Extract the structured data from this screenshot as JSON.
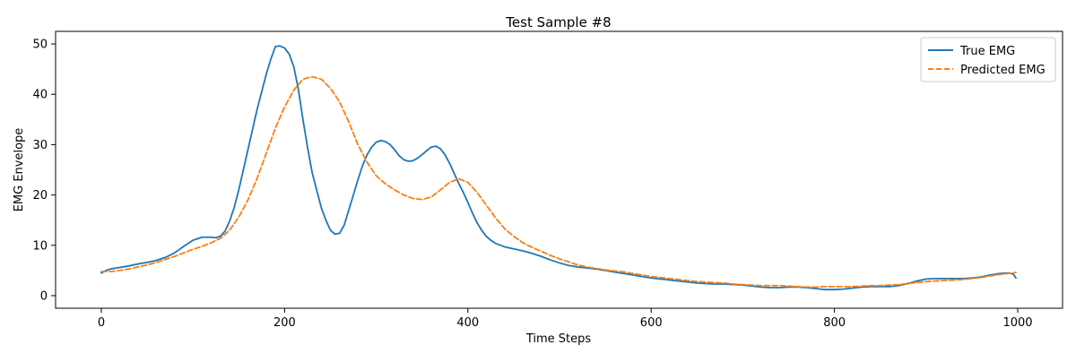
{
  "chart_data": {
    "type": "line",
    "title": "Test Sample #8",
    "xlabel": "Time Steps",
    "ylabel": "EMG Envelope",
    "xlim": [
      -49.9,
      1048.9
    ],
    "ylim": [
      -2.5,
      52.5
    ],
    "xticks": [
      0,
      200,
      400,
      600,
      800,
      1000
    ],
    "yticks": [
      0,
      10,
      20,
      30,
      40,
      50
    ],
    "grid": false,
    "legend_position": "top-right",
    "series": [
      {
        "name": "True EMG",
        "color": "#1f77b4",
        "style": "solid",
        "points": [
          [
            0,
            4.5
          ],
          [
            5,
            5.0
          ],
          [
            10,
            5.3
          ],
          [
            20,
            5.6
          ],
          [
            30,
            5.9
          ],
          [
            40,
            6.3
          ],
          [
            50,
            6.6
          ],
          [
            60,
            7.0
          ],
          [
            70,
            7.6
          ],
          [
            80,
            8.5
          ],
          [
            90,
            9.8
          ],
          [
            100,
            11.0
          ],
          [
            110,
            11.6
          ],
          [
            120,
            11.6
          ],
          [
            125,
            11.5
          ],
          [
            130,
            11.8
          ],
          [
            135,
            12.8
          ],
          [
            140,
            14.8
          ],
          [
            145,
            17.5
          ],
          [
            150,
            21.0
          ],
          [
            155,
            25.0
          ],
          [
            160,
            29.0
          ],
          [
            165,
            33.0
          ],
          [
            170,
            37.0
          ],
          [
            175,
            40.5
          ],
          [
            180,
            44.0
          ],
          [
            185,
            47.0
          ],
          [
            190,
            49.5
          ],
          [
            195,
            49.6
          ],
          [
            200,
            49.2
          ],
          [
            205,
            48.0
          ],
          [
            210,
            45.5
          ],
          [
            215,
            41.0
          ],
          [
            220,
            35.0
          ],
          [
            225,
            29.5
          ],
          [
            230,
            24.5
          ],
          [
            235,
            21.0
          ],
          [
            240,
            17.5
          ],
          [
            245,
            15.0
          ],
          [
            250,
            13.0
          ],
          [
            255,
            12.2
          ],
          [
            260,
            12.4
          ],
          [
            265,
            14.0
          ],
          [
            270,
            17.0
          ],
          [
            275,
            20.0
          ],
          [
            280,
            23.0
          ],
          [
            285,
            25.8
          ],
          [
            290,
            28.0
          ],
          [
            295,
            29.5
          ],
          [
            300,
            30.5
          ],
          [
            305,
            30.8
          ],
          [
            310,
            30.6
          ],
          [
            315,
            30.0
          ],
          [
            320,
            29.0
          ],
          [
            325,
            27.8
          ],
          [
            330,
            27.0
          ],
          [
            335,
            26.7
          ],
          [
            340,
            26.8
          ],
          [
            345,
            27.3
          ],
          [
            350,
            28.0
          ],
          [
            355,
            28.8
          ],
          [
            360,
            29.5
          ],
          [
            365,
            29.7
          ],
          [
            370,
            29.2
          ],
          [
            375,
            28.0
          ],
          [
            380,
            26.3
          ],
          [
            385,
            24.3
          ],
          [
            390,
            22.3
          ],
          [
            395,
            20.5
          ],
          [
            400,
            18.5
          ],
          [
            405,
            16.4
          ],
          [
            410,
            14.5
          ],
          [
            415,
            13.0
          ],
          [
            420,
            11.8
          ],
          [
            425,
            11.0
          ],
          [
            430,
            10.4
          ],
          [
            440,
            9.7
          ],
          [
            450,
            9.3
          ],
          [
            460,
            8.9
          ],
          [
            470,
            8.4
          ],
          [
            480,
            7.8
          ],
          [
            490,
            7.1
          ],
          [
            500,
            6.5
          ],
          [
            510,
            6.0
          ],
          [
            520,
            5.7
          ],
          [
            530,
            5.5
          ],
          [
            540,
            5.3
          ],
          [
            550,
            5.0
          ],
          [
            560,
            4.7
          ],
          [
            570,
            4.4
          ],
          [
            580,
            4.1
          ],
          [
            590,
            3.8
          ],
          [
            600,
            3.5
          ],
          [
            610,
            3.3
          ],
          [
            620,
            3.1
          ],
          [
            630,
            2.9
          ],
          [
            640,
            2.7
          ],
          [
            650,
            2.5
          ],
          [
            660,
            2.4
          ],
          [
            670,
            2.3
          ],
          [
            680,
            2.3
          ],
          [
            690,
            2.2
          ],
          [
            700,
            2.1
          ],
          [
            710,
            1.9
          ],
          [
            720,
            1.7
          ],
          [
            730,
            1.6
          ],
          [
            740,
            1.6
          ],
          [
            750,
            1.7
          ],
          [
            760,
            1.7
          ],
          [
            770,
            1.6
          ],
          [
            780,
            1.4
          ],
          [
            790,
            1.2
          ],
          [
            800,
            1.2
          ],
          [
            810,
            1.3
          ],
          [
            820,
            1.5
          ],
          [
            830,
            1.7
          ],
          [
            840,
            1.8
          ],
          [
            850,
            1.8
          ],
          [
            860,
            1.8
          ],
          [
            870,
            2.0
          ],
          [
            880,
            2.4
          ],
          [
            890,
            2.9
          ],
          [
            900,
            3.3
          ],
          [
            910,
            3.4
          ],
          [
            920,
            3.4
          ],
          [
            930,
            3.4
          ],
          [
            940,
            3.4
          ],
          [
            950,
            3.5
          ],
          [
            960,
            3.7
          ],
          [
            970,
            4.1
          ],
          [
            980,
            4.4
          ],
          [
            990,
            4.5
          ],
          [
            995,
            4.3
          ],
          [
            998,
            3.5
          ]
        ]
      },
      {
        "name": "Predicted EMG",
        "color": "#ff7f0e",
        "style": "dashed",
        "points": [
          [
            0,
            4.8
          ],
          [
            10,
            4.8
          ],
          [
            20,
            5.0
          ],
          [
            30,
            5.3
          ],
          [
            40,
            5.7
          ],
          [
            50,
            6.1
          ],
          [
            60,
            6.6
          ],
          [
            70,
            7.2
          ],
          [
            80,
            7.8
          ],
          [
            90,
            8.5
          ],
          [
            100,
            9.2
          ],
          [
            110,
            9.8
          ],
          [
            120,
            10.5
          ],
          [
            130,
            11.4
          ],
          [
            140,
            13.0
          ],
          [
            150,
            15.6
          ],
          [
            160,
            19.0
          ],
          [
            170,
            23.3
          ],
          [
            180,
            28.3
          ],
          [
            190,
            33.3
          ],
          [
            200,
            37.5
          ],
          [
            210,
            40.8
          ],
          [
            220,
            43.0
          ],
          [
            230,
            43.5
          ],
          [
            240,
            43.0
          ],
          [
            250,
            41.2
          ],
          [
            260,
            38.5
          ],
          [
            270,
            34.5
          ],
          [
            280,
            30.0
          ],
          [
            290,
            26.5
          ],
          [
            300,
            23.8
          ],
          [
            310,
            22.2
          ],
          [
            320,
            21.0
          ],
          [
            330,
            20.0
          ],
          [
            340,
            19.3
          ],
          [
            350,
            19.1
          ],
          [
            360,
            19.6
          ],
          [
            370,
            21.0
          ],
          [
            380,
            22.5
          ],
          [
            390,
            23.2
          ],
          [
            400,
            22.5
          ],
          [
            410,
            20.5
          ],
          [
            420,
            18.0
          ],
          [
            430,
            15.5
          ],
          [
            440,
            13.3
          ],
          [
            450,
            11.8
          ],
          [
            460,
            10.5
          ],
          [
            470,
            9.6
          ],
          [
            480,
            8.8
          ],
          [
            490,
            8.0
          ],
          [
            500,
            7.3
          ],
          [
            510,
            6.7
          ],
          [
            520,
            6.1
          ],
          [
            530,
            5.7
          ],
          [
            540,
            5.4
          ],
          [
            550,
            5.1
          ],
          [
            560,
            4.9
          ],
          [
            570,
            4.7
          ],
          [
            580,
            4.4
          ],
          [
            590,
            4.1
          ],
          [
            600,
            3.8
          ],
          [
            610,
            3.6
          ],
          [
            620,
            3.4
          ],
          [
            630,
            3.2
          ],
          [
            640,
            3.0
          ],
          [
            650,
            2.8
          ],
          [
            660,
            2.7
          ],
          [
            670,
            2.6
          ],
          [
            680,
            2.5
          ],
          [
            690,
            2.3
          ],
          [
            700,
            2.2
          ],
          [
            710,
            2.1
          ],
          [
            720,
            2.0
          ],
          [
            730,
            2.0
          ],
          [
            740,
            2.0
          ],
          [
            750,
            1.9
          ],
          [
            760,
            1.8
          ],
          [
            770,
            1.7
          ],
          [
            780,
            1.7
          ],
          [
            790,
            1.8
          ],
          [
            800,
            1.8
          ],
          [
            810,
            1.8
          ],
          [
            820,
            1.8
          ],
          [
            830,
            1.9
          ],
          [
            840,
            2.0
          ],
          [
            850,
            2.0
          ],
          [
            860,
            2.1
          ],
          [
            870,
            2.2
          ],
          [
            880,
            2.4
          ],
          [
            890,
            2.6
          ],
          [
            900,
            2.8
          ],
          [
            910,
            2.9
          ],
          [
            920,
            3.0
          ],
          [
            930,
            3.1
          ],
          [
            940,
            3.2
          ],
          [
            950,
            3.4
          ],
          [
            960,
            3.6
          ],
          [
            970,
            3.9
          ],
          [
            980,
            4.2
          ],
          [
            990,
            4.4
          ],
          [
            998,
            4.6
          ]
        ]
      }
    ]
  }
}
